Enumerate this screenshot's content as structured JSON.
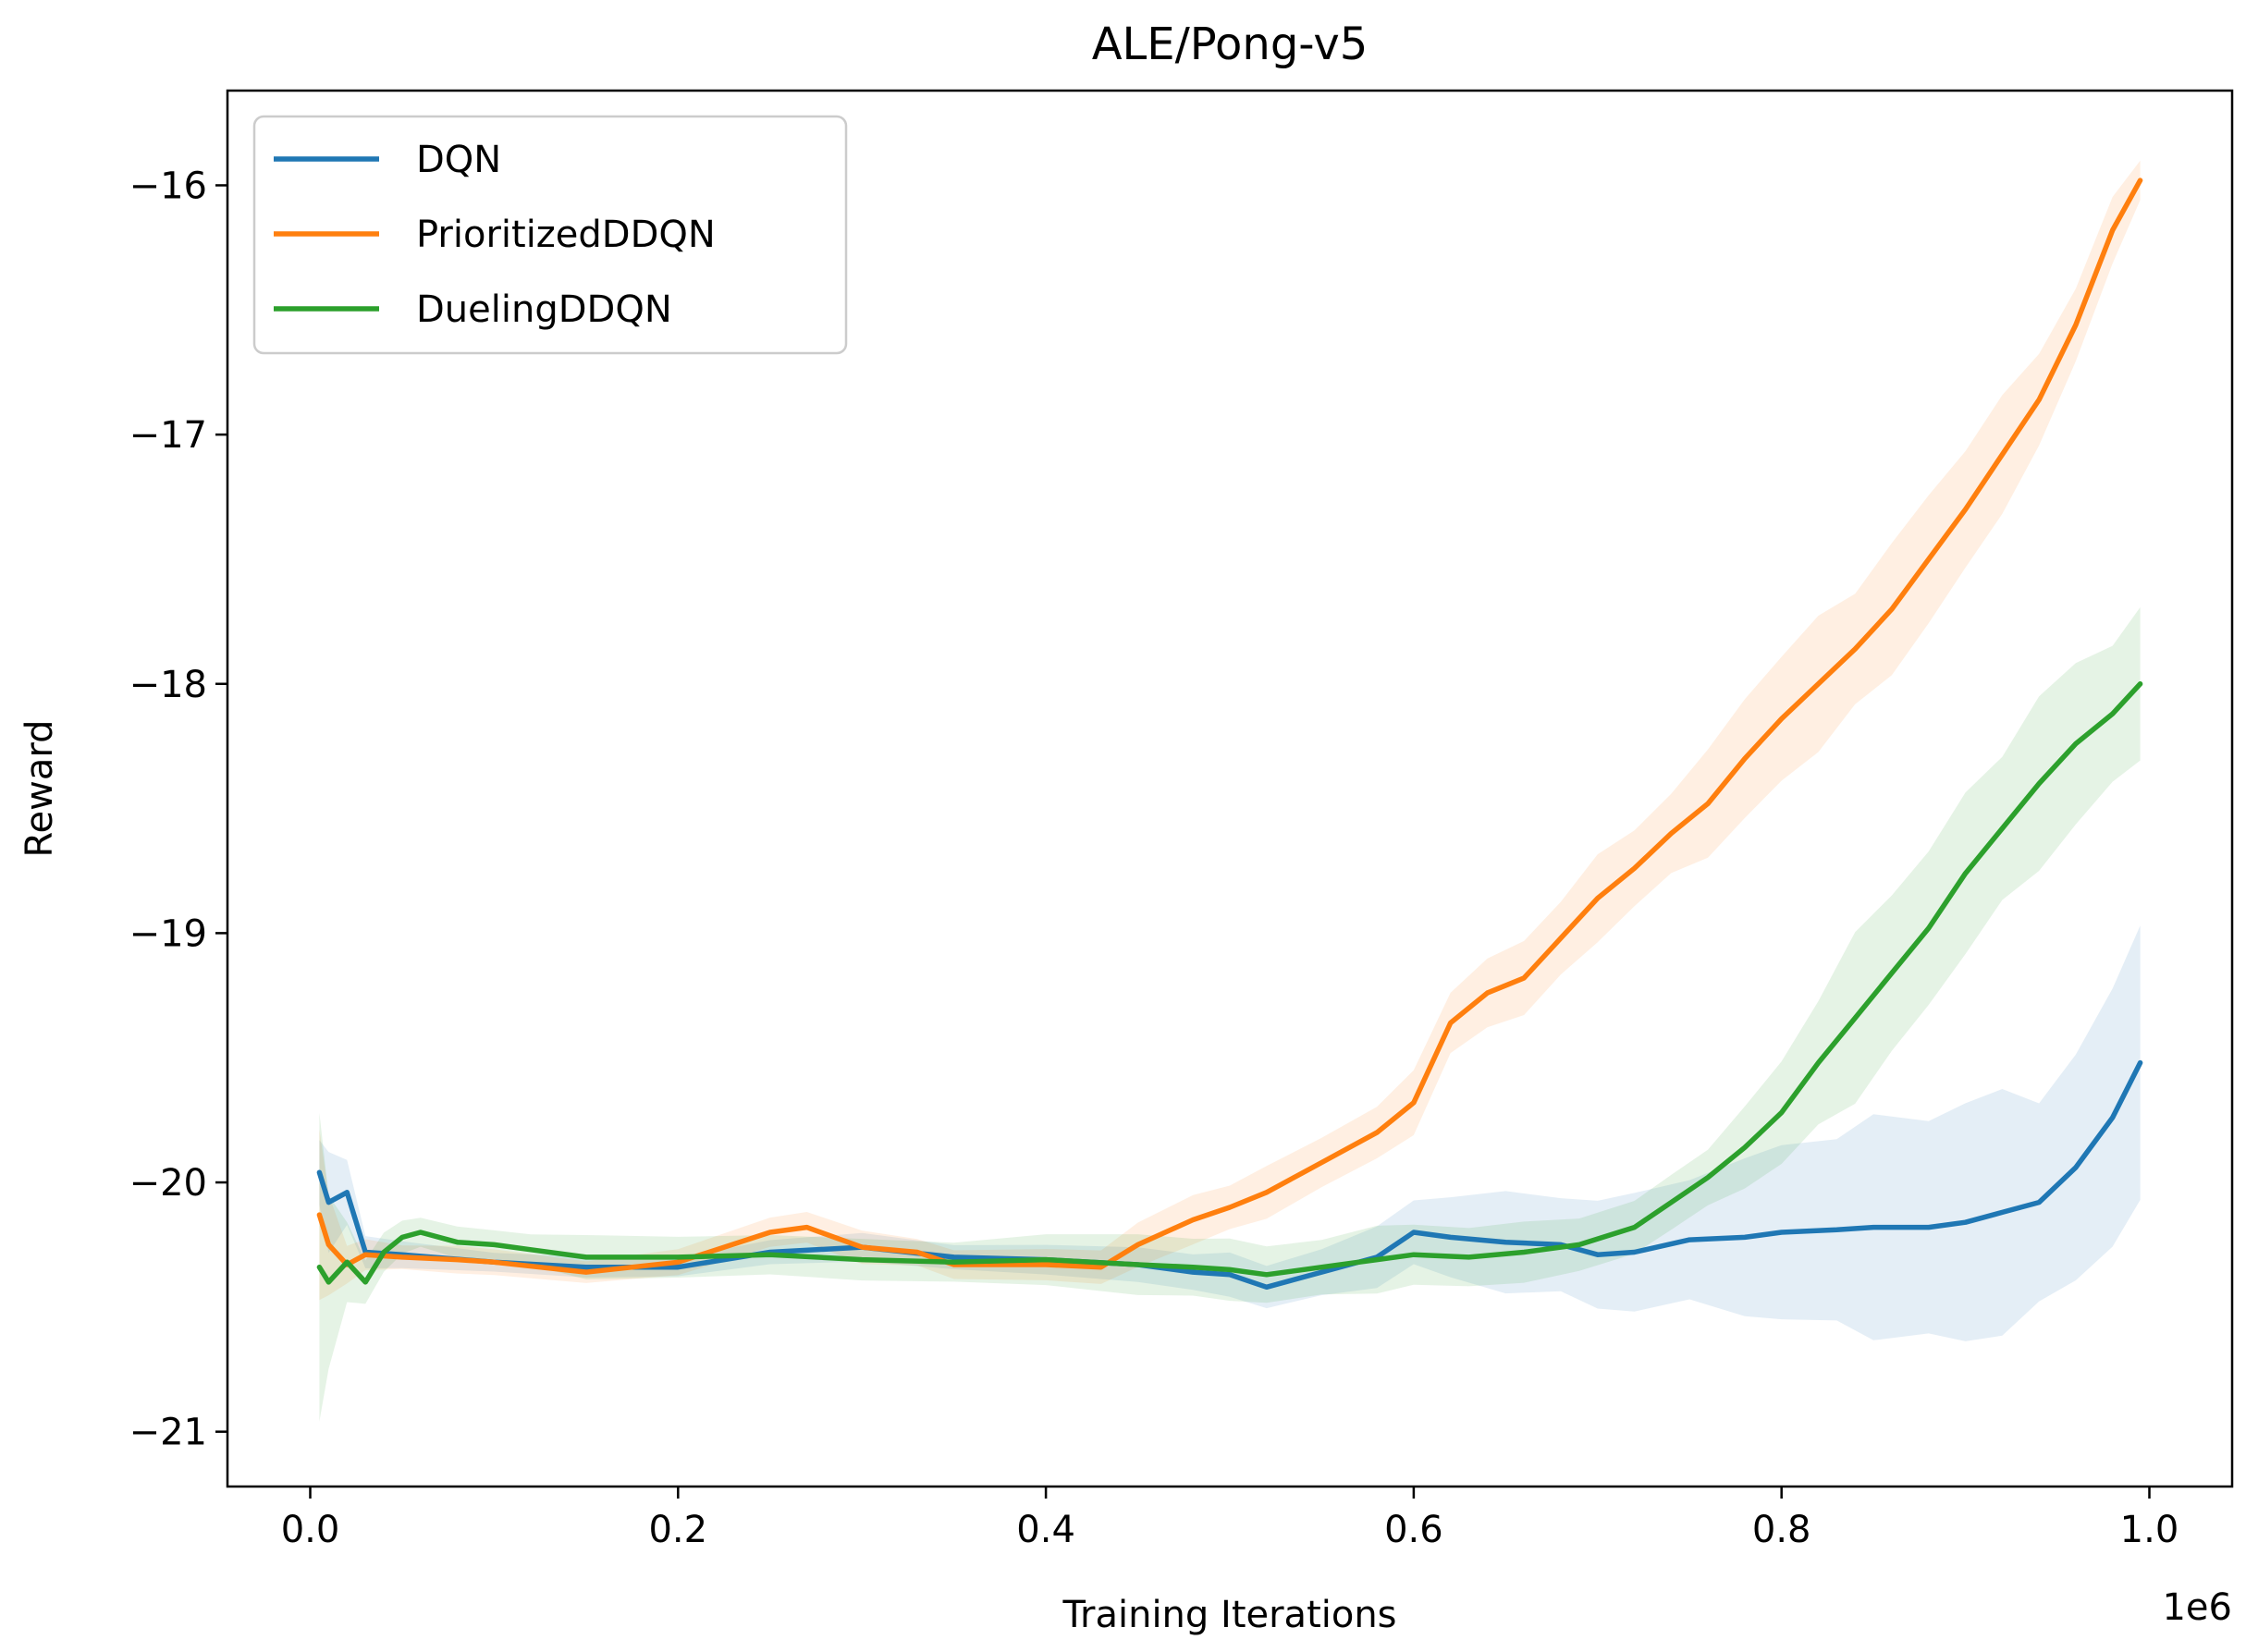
{
  "chart_data": {
    "type": "line",
    "title": "ALE/Pong-v5",
    "xlabel": "Training Iterations",
    "ylabel": "Reward",
    "x_offset_label": "1e6",
    "xlim": [
      -0.045,
      1.045
    ],
    "ylim": [
      -21.22,
      -15.62
    ],
    "x_ticks": [
      0.0,
      0.2,
      0.4,
      0.6,
      0.8,
      1.0
    ],
    "x_tick_labels": [
      "0.0",
      "0.2",
      "0.4",
      "0.6",
      "0.8",
      "1.0"
    ],
    "y_ticks": [
      -21,
      -20,
      -19,
      -18,
      -17,
      -16
    ],
    "y_tick_labels": [
      "−21",
      "−20",
      "−19",
      "−18",
      "−17",
      "−16"
    ],
    "grid": false,
    "legend_position": "upper-left",
    "series": [
      {
        "name": "DQN",
        "color": "#1f77b4",
        "x": [
          0.005,
          0.01,
          0.02,
          0.03,
          0.05,
          0.1,
          0.15,
          0.2,
          0.25,
          0.3,
          0.35,
          0.4,
          0.45,
          0.48,
          0.5,
          0.52,
          0.55,
          0.58,
          0.6,
          0.62,
          0.65,
          0.68,
          0.7,
          0.72,
          0.75,
          0.78,
          0.8,
          0.83,
          0.85,
          0.88,
          0.9,
          0.92,
          0.94,
          0.96,
          0.98,
          0.995
        ],
        "y": [
          -19.96,
          -20.08,
          -20.04,
          -20.28,
          -20.29,
          -20.32,
          -20.34,
          -20.34,
          -20.28,
          -20.26,
          -20.3,
          -20.31,
          -20.33,
          -20.36,
          -20.37,
          -20.42,
          -20.36,
          -20.3,
          -20.2,
          -20.22,
          -20.24,
          -20.25,
          -20.29,
          -20.28,
          -20.23,
          -20.22,
          -20.2,
          -20.19,
          -20.18,
          -20.18,
          -20.16,
          -20.12,
          -20.08,
          -19.94,
          -19.74,
          -19.52
        ],
        "band": [
          0.13,
          0.2,
          0.15,
          0.06,
          0.05,
          0.04,
          0.04,
          0.04,
          0.05,
          0.05,
          0.05,
          0.06,
          0.07,
          0.08,
          0.08,
          0.08,
          0.1,
          0.12,
          0.14,
          0.16,
          0.18,
          0.2,
          0.22,
          0.24,
          0.26,
          0.28,
          0.34,
          0.4,
          0.44,
          0.46,
          0.46,
          0.44,
          0.44,
          0.46,
          0.52,
          0.58
        ]
      },
      {
        "name": "PrioritizedDDQN",
        "color": "#ff7f0e",
        "x": [
          0.005,
          0.01,
          0.02,
          0.03,
          0.05,
          0.08,
          0.1,
          0.15,
          0.2,
          0.25,
          0.27,
          0.3,
          0.33,
          0.35,
          0.4,
          0.43,
          0.45,
          0.48,
          0.5,
          0.52,
          0.55,
          0.58,
          0.6,
          0.62,
          0.64,
          0.66,
          0.68,
          0.7,
          0.72,
          0.74,
          0.76,
          0.78,
          0.8,
          0.82,
          0.84,
          0.86,
          0.88,
          0.9,
          0.92,
          0.94,
          0.96,
          0.98,
          0.995
        ],
        "y": [
          -20.13,
          -20.25,
          -20.33,
          -20.29,
          -20.3,
          -20.31,
          -20.32,
          -20.36,
          -20.32,
          -20.2,
          -20.18,
          -20.26,
          -20.28,
          -20.33,
          -20.33,
          -20.34,
          -20.25,
          -20.15,
          -20.1,
          -20.04,
          -19.92,
          -19.8,
          -19.68,
          -19.36,
          -19.24,
          -19.18,
          -19.02,
          -18.86,
          -18.74,
          -18.6,
          -18.48,
          -18.3,
          -18.14,
          -18.0,
          -17.86,
          -17.7,
          -17.5,
          -17.3,
          -17.08,
          -16.86,
          -16.56,
          -16.18,
          -15.98
        ],
        "band": [
          0.3,
          0.22,
          0.08,
          0.06,
          0.05,
          0.05,
          0.05,
          0.05,
          0.05,
          0.06,
          0.06,
          0.06,
          0.06,
          0.06,
          0.06,
          0.07,
          0.08,
          0.1,
          0.1,
          0.1,
          0.1,
          0.1,
          0.12,
          0.14,
          0.14,
          0.14,
          0.15,
          0.16,
          0.16,
          0.18,
          0.2,
          0.24,
          0.24,
          0.26,
          0.26,
          0.26,
          0.24,
          0.24,
          0.22,
          0.2,
          0.16,
          0.12,
          0.08
        ]
      },
      {
        "name": "DuelingDDQN",
        "color": "#2ca02c",
        "x": [
          0.005,
          0.01,
          0.02,
          0.03,
          0.04,
          0.05,
          0.06,
          0.08,
          0.1,
          0.12,
          0.15,
          0.2,
          0.25,
          0.3,
          0.35,
          0.4,
          0.45,
          0.48,
          0.5,
          0.52,
          0.55,
          0.58,
          0.6,
          0.63,
          0.66,
          0.69,
          0.72,
          0.74,
          0.76,
          0.78,
          0.8,
          0.82,
          0.84,
          0.86,
          0.88,
          0.9,
          0.92,
          0.94,
          0.96,
          0.98,
          0.995
        ],
        "y": [
          -20.34,
          -20.4,
          -20.32,
          -20.4,
          -20.28,
          -20.22,
          -20.2,
          -20.24,
          -20.25,
          -20.27,
          -20.3,
          -20.3,
          -20.29,
          -20.31,
          -20.32,
          -20.31,
          -20.33,
          -20.34,
          -20.35,
          -20.37,
          -20.34,
          -20.31,
          -20.29,
          -20.3,
          -20.28,
          -20.25,
          -20.18,
          -20.08,
          -19.98,
          -19.86,
          -19.72,
          -19.52,
          -19.34,
          -19.16,
          -18.98,
          -18.76,
          -18.58,
          -18.4,
          -18.24,
          -18.12,
          -18.0
        ],
        "band": [
          0.6,
          0.35,
          0.15,
          0.1,
          0.08,
          0.06,
          0.06,
          0.06,
          0.06,
          0.07,
          0.08,
          0.08,
          0.08,
          0.08,
          0.09,
          0.1,
          0.11,
          0.12,
          0.12,
          0.12,
          0.12,
          0.12,
          0.12,
          0.12,
          0.12,
          0.12,
          0.1,
          0.1,
          0.12,
          0.16,
          0.22,
          0.26,
          0.3,
          0.32,
          0.32,
          0.32,
          0.32,
          0.32,
          0.3,
          0.3,
          0.3
        ]
      }
    ]
  }
}
